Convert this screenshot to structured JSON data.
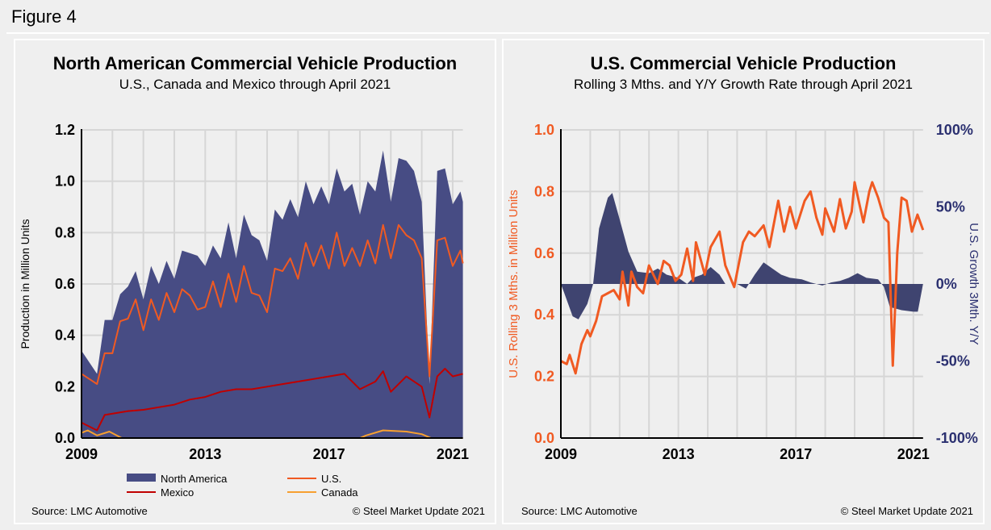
{
  "figure_label": "Figure 4",
  "colors": {
    "north_america": "#474c84",
    "us": "#f05a22",
    "mexico": "#c00000",
    "canada": "#f7a030",
    "growth": "#3f4470",
    "right_axis": "#2b3070"
  },
  "chart_data": [
    {
      "type": "area",
      "title": "North American Commercial Vehicle Production",
      "subtitle": "U.S., Canada and Mexico through April 2021",
      "ylabel": "Production in Million Units",
      "xlabel": "",
      "xlim": [
        2009,
        2021.33
      ],
      "ylim": [
        0,
        1.2
      ],
      "xticks": [
        "2009",
        "2013",
        "2017",
        "2021"
      ],
      "yticks": [
        "0.0",
        "0.2",
        "0.4",
        "0.6",
        "0.8",
        "1.0",
        "1.2"
      ],
      "grid": true,
      "legend_placement": "bottom",
      "source": "Source: LMC Automotive",
      "copyright": "© Steel Market Update 2021",
      "series": [
        {
          "name": "North America",
          "kind": "area",
          "x": [
            2009.0,
            2009.5,
            2009.75,
            2010.0,
            2010.25,
            2010.5,
            2010.75,
            2011.0,
            2011.25,
            2011.5,
            2011.75,
            2012.0,
            2012.25,
            2012.5,
            2012.75,
            2013.0,
            2013.25,
            2013.5,
            2013.75,
            2014.0,
            2014.25,
            2014.5,
            2014.75,
            2015.0,
            2015.25,
            2015.5,
            2015.75,
            2016.0,
            2016.25,
            2016.5,
            2016.75,
            2017.0,
            2017.25,
            2017.5,
            2017.75,
            2018.0,
            2018.25,
            2018.5,
            2018.75,
            2019.0,
            2019.25,
            2019.5,
            2019.75,
            2020.0,
            2020.25,
            2020.5,
            2020.75,
            2021.0,
            2021.25,
            2021.33
          ],
          "y": [
            0.34,
            0.25,
            0.46,
            0.46,
            0.56,
            0.59,
            0.65,
            0.54,
            0.67,
            0.6,
            0.69,
            0.62,
            0.73,
            0.72,
            0.71,
            0.67,
            0.75,
            0.7,
            0.84,
            0.7,
            0.87,
            0.79,
            0.77,
            0.69,
            0.89,
            0.85,
            0.93,
            0.86,
            1.0,
            0.91,
            0.98,
            0.91,
            1.05,
            0.96,
            0.99,
            0.87,
            1.0,
            0.96,
            1.12,
            0.92,
            1.09,
            1.08,
            1.04,
            0.92,
            0.21,
            1.04,
            1.05,
            0.91,
            0.96,
            0.92
          ]
        },
        {
          "name": "U.S.",
          "kind": "line",
          "x": [
            2009.0,
            2009.5,
            2009.75,
            2010.0,
            2010.25,
            2010.5,
            2010.75,
            2011.0,
            2011.25,
            2011.5,
            2011.75,
            2012.0,
            2012.25,
            2012.5,
            2012.75,
            2013.0,
            2013.25,
            2013.5,
            2013.75,
            2014.0,
            2014.25,
            2014.5,
            2014.75,
            2015.0,
            2015.25,
            2015.5,
            2015.75,
            2016.0,
            2016.25,
            2016.5,
            2016.75,
            2017.0,
            2017.25,
            2017.5,
            2017.75,
            2018.0,
            2018.25,
            2018.5,
            2018.75,
            2019.0,
            2019.25,
            2019.5,
            2019.75,
            2020.0,
            2020.25,
            2020.5,
            2020.75,
            2021.0,
            2021.25,
            2021.33
          ],
          "y": [
            0.25,
            0.21,
            0.33,
            0.33,
            0.455,
            0.465,
            0.54,
            0.42,
            0.54,
            0.46,
            0.565,
            0.49,
            0.58,
            0.555,
            0.5,
            0.51,
            0.61,
            0.51,
            0.64,
            0.53,
            0.67,
            0.565,
            0.555,
            0.49,
            0.66,
            0.65,
            0.7,
            0.62,
            0.76,
            0.67,
            0.75,
            0.66,
            0.8,
            0.67,
            0.74,
            0.67,
            0.77,
            0.68,
            0.83,
            0.7,
            0.83,
            0.79,
            0.77,
            0.7,
            0.24,
            0.77,
            0.78,
            0.67,
            0.73,
            0.68
          ]
        },
        {
          "name": "Mexico",
          "kind": "line",
          "x": [
            2009.0,
            2009.5,
            2009.75,
            2010.5,
            2011.0,
            2011.5,
            2012.0,
            2012.5,
            2013.0,
            2013.5,
            2014.0,
            2014.5,
            2015.0,
            2015.5,
            2016.0,
            2016.5,
            2017.0,
            2017.5,
            2018.0,
            2018.5,
            2018.75,
            2019.0,
            2019.5,
            2020.0,
            2020.25,
            2020.5,
            2020.75,
            2021.0,
            2021.33
          ],
          "y": [
            0.06,
            0.03,
            0.09,
            0.105,
            0.11,
            0.12,
            0.13,
            0.15,
            0.16,
            0.18,
            0.19,
            0.19,
            0.2,
            0.21,
            0.22,
            0.23,
            0.24,
            0.25,
            0.19,
            0.22,
            0.26,
            0.18,
            0.24,
            0.2,
            0.08,
            0.24,
            0.27,
            0.24,
            0.25
          ]
        },
        {
          "name": "Canada",
          "kind": "line",
          "x": [
            2009.0,
            2009.2,
            2009.5,
            2009.9,
            2010.3,
            2018.0,
            2018.2,
            2018.75,
            2019.5,
            2020.0,
            2020.3,
            2021.33
          ],
          "y": [
            0.02,
            0.03,
            0.01,
            0.025,
            0.0,
            0.0,
            0.01,
            0.03,
            0.025,
            0.015,
            0.0,
            0.0
          ]
        }
      ]
    },
    {
      "type": "line",
      "title": "U.S. Commercial Vehicle Production",
      "subtitle": "Rolling 3 Mths. and Y/Y Growth Rate through April 2021",
      "ylabel": "U.S. Rolling 3 Mths. in Million Units",
      "y2label": "U.S. Growth 3Mth. Y/Y",
      "xlim": [
        2009,
        2021.33
      ],
      "ylim": [
        0,
        1.0
      ],
      "y2lim": [
        -100,
        100
      ],
      "xticks": [
        "2009",
        "2013",
        "2017",
        "2021"
      ],
      "yticks": [
        "0.0",
        "0.2",
        "0.4",
        "0.6",
        "0.8",
        "1.0"
      ],
      "y2ticks": [
        "-100%",
        "-50%",
        "0%",
        "50%",
        "100%"
      ],
      "grid": true,
      "source": "Source: LMC Automotive",
      "copyright": "© Steel Market Update 2021",
      "series": [
        {
          "kind": "area",
          "axis": "right",
          "x": [
            2009.0,
            2009.1,
            2009.4,
            2009.6,
            2009.9,
            2010.1,
            2010.3,
            2010.6,
            2010.75,
            2011.0,
            2011.3,
            2011.6,
            2012.0,
            2012.3,
            2012.6,
            2013.0,
            2013.3,
            2013.5,
            2013.8,
            2014.1,
            2014.4,
            2014.6,
            2015.0,
            2015.3,
            2015.6,
            2015.9,
            2016.2,
            2016.5,
            2016.8,
            2017.2,
            2017.5,
            2017.9,
            2018.2,
            2018.5,
            2018.8,
            2019.1,
            2019.4,
            2019.8,
            2020.0,
            2020.2,
            2020.6,
            2021.0,
            2021.15,
            2021.33
          ],
          "y": [
            0,
            -5,
            -21,
            -23,
            -13,
            0,
            36,
            56,
            59,
            42,
            21,
            8,
            7,
            10,
            6,
            4,
            0,
            4,
            6,
            11,
            6,
            0,
            0,
            -3,
            6,
            14,
            10,
            6,
            4,
            3,
            1,
            -1,
            1,
            2,
            4,
            7,
            4,
            3,
            -2,
            -15,
            -17,
            -18,
            -18,
            0
          ]
        },
        {
          "kind": "line",
          "axis": "left",
          "x": [
            2009.0,
            2009.2,
            2009.3,
            2009.5,
            2009.7,
            2009.9,
            2010.0,
            2010.2,
            2010.4,
            2010.6,
            2010.8,
            2011.0,
            2011.1,
            2011.3,
            2011.4,
            2011.6,
            2011.8,
            2012.0,
            2012.3,
            2012.5,
            2012.7,
            2012.9,
            2013.1,
            2013.3,
            2013.5,
            2013.6,
            2013.9,
            2014.1,
            2014.4,
            2014.6,
            2014.9,
            2015.2,
            2015.4,
            2015.6,
            2015.9,
            2016.1,
            2016.4,
            2016.6,
            2016.8,
            2017.0,
            2017.3,
            2017.5,
            2017.7,
            2017.9,
            2018.0,
            2018.3,
            2018.5,
            2018.7,
            2018.9,
            2019.0,
            2019.3,
            2019.5,
            2019.6,
            2019.8,
            2020.0,
            2020.15,
            2020.3,
            2020.45,
            2020.6,
            2020.77,
            2020.95,
            2021.14,
            2021.33
          ],
          "y": [
            0.25,
            0.24,
            0.27,
            0.21,
            0.305,
            0.35,
            0.33,
            0.38,
            0.46,
            0.47,
            0.48,
            0.45,
            0.54,
            0.43,
            0.54,
            0.49,
            0.47,
            0.56,
            0.5,
            0.575,
            0.56,
            0.51,
            0.53,
            0.615,
            0.51,
            0.635,
            0.53,
            0.62,
            0.67,
            0.56,
            0.49,
            0.635,
            0.67,
            0.655,
            0.69,
            0.62,
            0.77,
            0.67,
            0.75,
            0.68,
            0.77,
            0.8,
            0.715,
            0.66,
            0.745,
            0.67,
            0.775,
            0.68,
            0.735,
            0.83,
            0.7,
            0.8,
            0.83,
            0.78,
            0.715,
            0.7,
            0.235,
            0.6,
            0.78,
            0.77,
            0.67,
            0.725,
            0.675
          ]
        }
      ]
    }
  ]
}
